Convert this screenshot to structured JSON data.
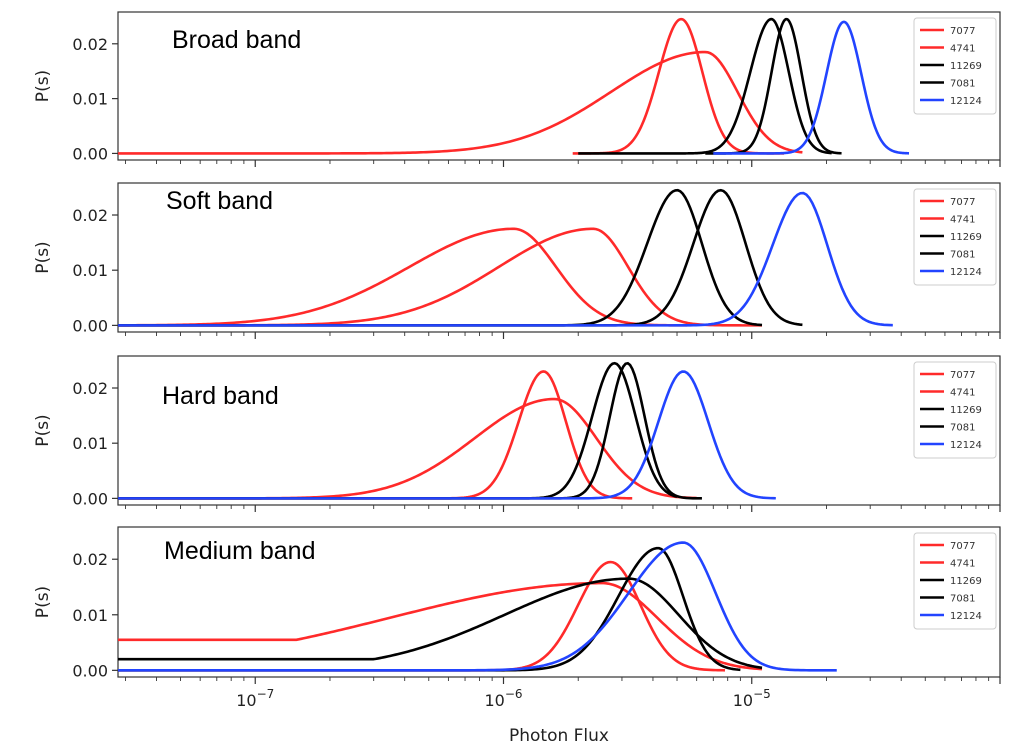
{
  "chart_data": [
    {
      "type": "line",
      "title": "Broad band",
      "ylabel": "P(s)",
      "xlabel": "",
      "xscale": "log",
      "xlim": [
        2.8e-08,
        0.0001
      ],
      "ylim": [
        -0.0012,
        0.0258
      ],
      "yticks": [
        "0.00",
        "0.01",
        "0.02"
      ],
      "legend": "top-right",
      "series": [
        {
          "name": "7077",
          "color": "#ff2a2a",
          "peak": 0.0245,
          "mu": 5.2e-06,
          "sl": 0.09,
          "sr": 0.085,
          "xmin": 1.9e-06,
          "xmax": 1.35e-05
        },
        {
          "name": "4741",
          "color": "#ff2a2a",
          "peak": 0.0185,
          "mu": 6.5e-06,
          "sl": 0.38,
          "sr": 0.13,
          "xmin": 2.8e-08,
          "xmax": 1.6e-05
        },
        {
          "name": "11269",
          "color": "#000000",
          "peak": 0.0245,
          "mu": 1.2e-05,
          "sl": 0.085,
          "sr": 0.07,
          "xmin": 2e-06,
          "xmax": 2.1e-05
        },
        {
          "name": "7081",
          "color": "#000000",
          "peak": 0.0245,
          "mu": 1.38e-05,
          "sl": 0.06,
          "sr": 0.06,
          "xmin": 6.5e-06,
          "xmax": 2.3e-05
        },
        {
          "name": "12124",
          "color": "#2244ff",
          "peak": 0.024,
          "mu": 2.35e-05,
          "sl": 0.07,
          "sr": 0.07,
          "xmin": 7e-06,
          "xmax": 4.3e-05
        }
      ]
    },
    {
      "type": "line",
      "title": "Soft band",
      "ylabel": "P(s)",
      "xlabel": "",
      "xscale": "log",
      "xlim": [
        2.8e-08,
        0.0001
      ],
      "ylim": [
        -0.0012,
        0.0258
      ],
      "yticks": [
        "0.00",
        "0.01",
        "0.02"
      ],
      "legend": "top-right",
      "series": [
        {
          "name": "7077",
          "color": "#ff2a2a",
          "peak": 0.0175,
          "mu": 1.1e-06,
          "sl": 0.42,
          "sr": 0.17,
          "xmin": 2.8e-08,
          "xmax": 5.5e-06
        },
        {
          "name": "4741",
          "color": "#ff2a2a",
          "peak": 0.0175,
          "mu": 2.3e-06,
          "sl": 0.38,
          "sr": 0.14,
          "xmin": 2.8e-08,
          "xmax": 1.1e-05
        },
        {
          "name": "11269",
          "color": "#000000",
          "peak": 0.0245,
          "mu": 5e-06,
          "sl": 0.12,
          "sr": 0.1,
          "xmin": 2.8e-08,
          "xmax": 1.1e-05
        },
        {
          "name": "7081",
          "color": "#000000",
          "peak": 0.0245,
          "mu": 7.5e-06,
          "sl": 0.11,
          "sr": 0.1,
          "xmin": 2.8e-08,
          "xmax": 1.6e-05
        },
        {
          "name": "12124",
          "color": "#2244ff",
          "peak": 0.024,
          "mu": 1.6e-05,
          "sl": 0.12,
          "sr": 0.1,
          "xmin": 2.8e-08,
          "xmax": 3.7e-05
        }
      ]
    },
    {
      "type": "line",
      "title": "Hard band",
      "ylabel": "P(s)",
      "xlabel": "",
      "xscale": "log",
      "xlim": [
        2.8e-08,
        0.0001
      ],
      "ylim": [
        -0.0012,
        0.0258
      ],
      "yticks": [
        "0.00",
        "0.01",
        "0.02"
      ],
      "legend": "top-right",
      "series": [
        {
          "name": "7077",
          "color": "#ff2a2a",
          "peak": 0.023,
          "mu": 1.45e-06,
          "sl": 0.1,
          "sr": 0.09,
          "xmin": 2.8e-08,
          "xmax": 3.3e-06
        },
        {
          "name": "4741",
          "color": "#ff2a2a",
          "peak": 0.018,
          "mu": 1.6e-06,
          "sl": 0.32,
          "sr": 0.17,
          "xmin": 2.8e-08,
          "xmax": 6e-06
        },
        {
          "name": "11269",
          "color": "#000000",
          "peak": 0.0245,
          "mu": 2.8e-06,
          "sl": 0.09,
          "sr": 0.085,
          "xmin": 2.8e-08,
          "xmax": 5e-06
        },
        {
          "name": "7081",
          "color": "#000000",
          "peak": 0.0245,
          "mu": 3.15e-06,
          "sl": 0.07,
          "sr": 0.07,
          "xmin": 2.8e-08,
          "xmax": 6.3e-06
        },
        {
          "name": "12124",
          "color": "#2244ff",
          "peak": 0.023,
          "mu": 5.3e-06,
          "sl": 0.1,
          "sr": 0.1,
          "xmin": 2.8e-08,
          "xmax": 1.25e-05
        }
      ]
    },
    {
      "type": "line",
      "title": "Medium band",
      "ylabel": "P(s)",
      "xlabel": "Photon Flux",
      "xscale": "log",
      "xlim": [
        2.8e-08,
        0.0001
      ],
      "ylim": [
        -0.0012,
        0.0258
      ],
      "yticks": [
        "0.00",
        "0.01",
        "0.02"
      ],
      "xticks": [
        "10^{-7}",
        "10^{-6}",
        "10^{-5}"
      ],
      "legend": "top-right",
      "series": [
        {
          "name": "7077",
          "color": "#ff2a2a",
          "peak": 0.0195,
          "mu": 2.7e-06,
          "sl": 0.13,
          "sr": 0.12,
          "xmin": 2.8e-08,
          "xmax": 7.8e-06
        },
        {
          "name": "4741",
          "color": "#ff2a2a",
          "peak": 0.0157,
          "mu": 2.5e-06,
          "sl": 0.85,
          "sr": 0.22,
          "xmin": 2.8e-08,
          "xmax": 1.1e-05,
          "base": 0.0055
        },
        {
          "name": "11269",
          "color": "#000000",
          "peak": 0.0165,
          "mu": 3.2e-06,
          "sl": 0.5,
          "sr": 0.2,
          "xmin": 2.8e-08,
          "xmax": 1.1e-05,
          "base": 0.002
        },
        {
          "name": "7081",
          "color": "#000000",
          "peak": 0.022,
          "mu": 4.2e-06,
          "sl": 0.16,
          "sr": 0.1,
          "xmin": 2.8e-08,
          "xmax": 9e-06
        },
        {
          "name": "12124",
          "color": "#2244ff",
          "peak": 0.023,
          "mu": 5.3e-06,
          "sl": 0.22,
          "sr": 0.13,
          "xmin": 2.8e-08,
          "xmax": 2.2e-05
        }
      ]
    }
  ]
}
